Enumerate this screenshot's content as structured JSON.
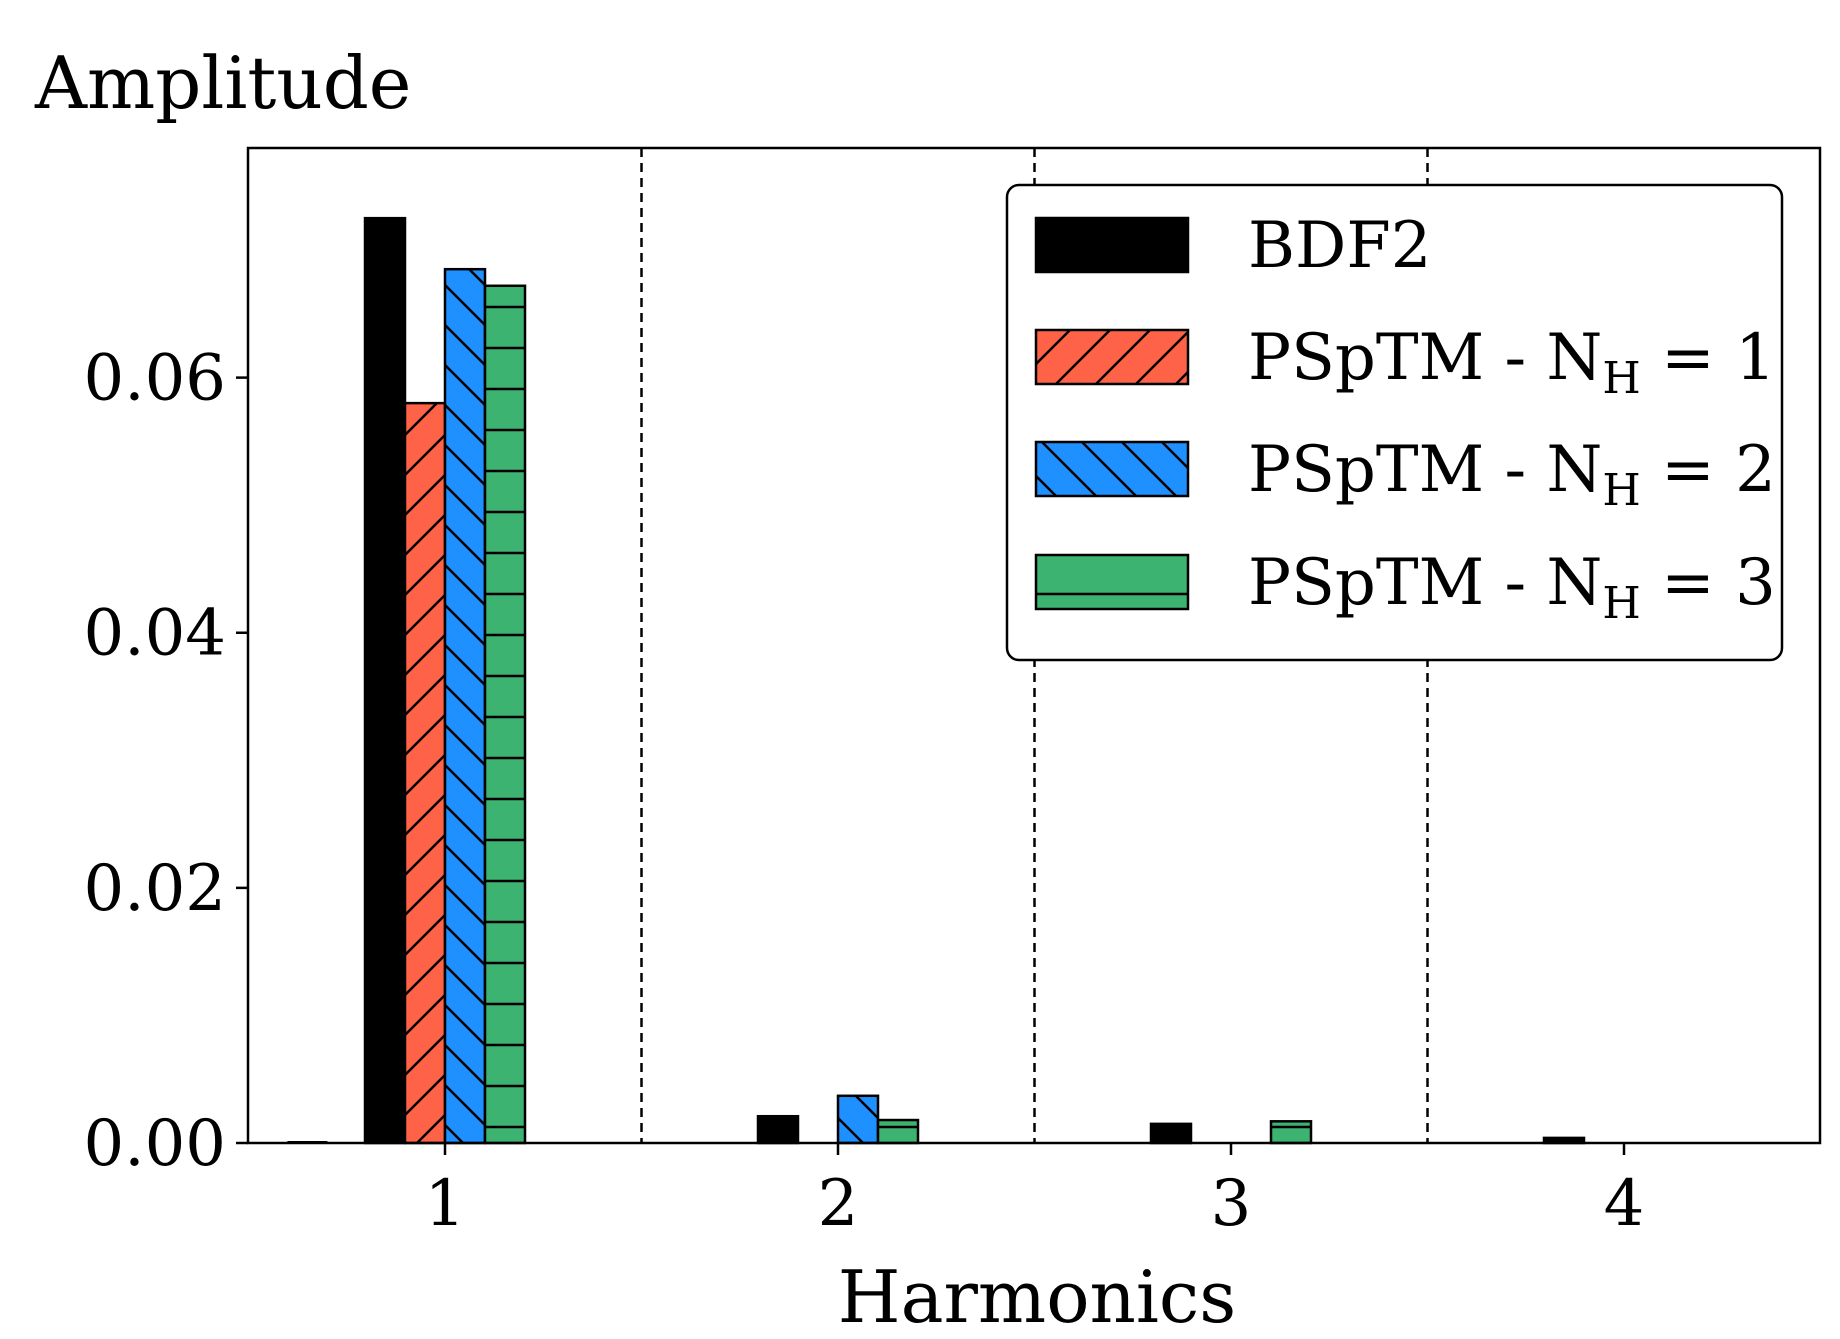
{
  "chart_data": {
    "type": "bar",
    "xlabel": "Harmonics",
    "ylabel": "Amplitude",
    "categories": [
      "1",
      "2",
      "3",
      "4"
    ],
    "ylim": [
      0,
      0.078
    ],
    "yticks": [
      "0.00",
      "0.02",
      "0.04",
      "0.06"
    ],
    "ytick_values": [
      0,
      0.02,
      0.04,
      0.06
    ],
    "grid": false,
    "category_separators": "dashed vertical lines between categories",
    "legend_position": "top-right",
    "series": [
      {
        "name": "BDF2",
        "legend_main": "BDF2",
        "legend_sub": "",
        "legend_tail": "",
        "color": "#000000",
        "hatch": "none",
        "values": [
          0.0725,
          0.0021,
          0.0015,
          0.0004
        ]
      },
      {
        "name": "PSpTM - N_H = 1",
        "legend_main": "PSpTM - N",
        "legend_sub": "H",
        "legend_tail": " = 1",
        "color": "#ff6347",
        "hatch": "forward-diagonal",
        "values": [
          0.058,
          0.0,
          0.0,
          0.0
        ]
      },
      {
        "name": "PSpTM - N_H = 2",
        "legend_main": "PSpTM - N",
        "legend_sub": "H",
        "legend_tail": " = 2",
        "color": "#1e90ff",
        "hatch": "back-diagonal",
        "values": [
          0.0685,
          0.0037,
          0.0,
          0.0
        ]
      },
      {
        "name": "PSpTM - N_H = 3",
        "legend_main": "PSpTM - N",
        "legend_sub": "H",
        "legend_tail": " = 3",
        "color": "#3cb371",
        "hatch": "horizontal",
        "values": [
          0.0672,
          0.0018,
          0.0017,
          0.0
        ]
      }
    ],
    "extra_bar": {
      "category_offset": -0.35,
      "value": 0.0001,
      "color": "#000000"
    }
  }
}
